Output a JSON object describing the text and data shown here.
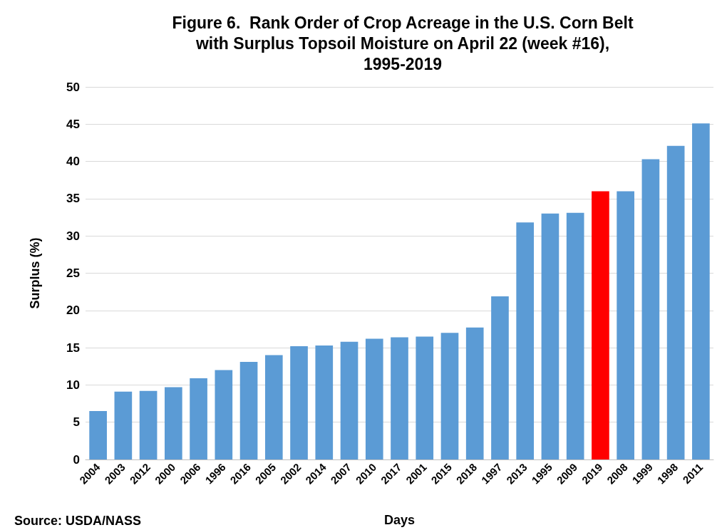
{
  "chart_data": {
    "type": "bar",
    "title": "Figure 6.  Rank Order of Crop Acreage in the U.S. Corn Belt\nwith Surplus Topsoil Moisture on April 22 (week #16),\n1995-2019",
    "xlabel": "Days",
    "ylabel": "Surplus (%)",
    "annotations": [
      "Source: USDA/NASS"
    ],
    "categories": [
      "2004",
      "2003",
      "2012",
      "2000",
      "2006",
      "1996",
      "2016",
      "2005",
      "2002",
      "2014",
      "2007",
      "2010",
      "2017",
      "2001",
      "2015",
      "2018",
      "1997",
      "2013",
      "1995",
      "2009",
      "2019",
      "2008",
      "1999",
      "1998",
      "2011"
    ],
    "values": [
      6.5,
      9.1,
      9.2,
      9.7,
      10.9,
      12.0,
      13.1,
      14.0,
      15.2,
      15.3,
      15.8,
      16.2,
      16.4,
      16.5,
      17.0,
      17.7,
      21.9,
      31.8,
      33.0,
      33.1,
      36.0,
      36.0,
      40.3,
      42.1,
      45.1
    ],
    "colors": [
      "#5b9bd5",
      "#5b9bd5",
      "#5b9bd5",
      "#5b9bd5",
      "#5b9bd5",
      "#5b9bd5",
      "#5b9bd5",
      "#5b9bd5",
      "#5b9bd5",
      "#5b9bd5",
      "#5b9bd5",
      "#5b9bd5",
      "#5b9bd5",
      "#5b9bd5",
      "#5b9bd5",
      "#5b9bd5",
      "#5b9bd5",
      "#5b9bd5",
      "#5b9bd5",
      "#5b9bd5",
      "#ff0000",
      "#5b9bd5",
      "#5b9bd5",
      "#5b9bd5",
      "#5b9bd5"
    ],
    "ylim": [
      0,
      50
    ],
    "yticks": [
      0,
      5,
      10,
      15,
      20,
      25,
      30,
      35,
      40,
      45,
      50
    ],
    "grid": "y"
  }
}
